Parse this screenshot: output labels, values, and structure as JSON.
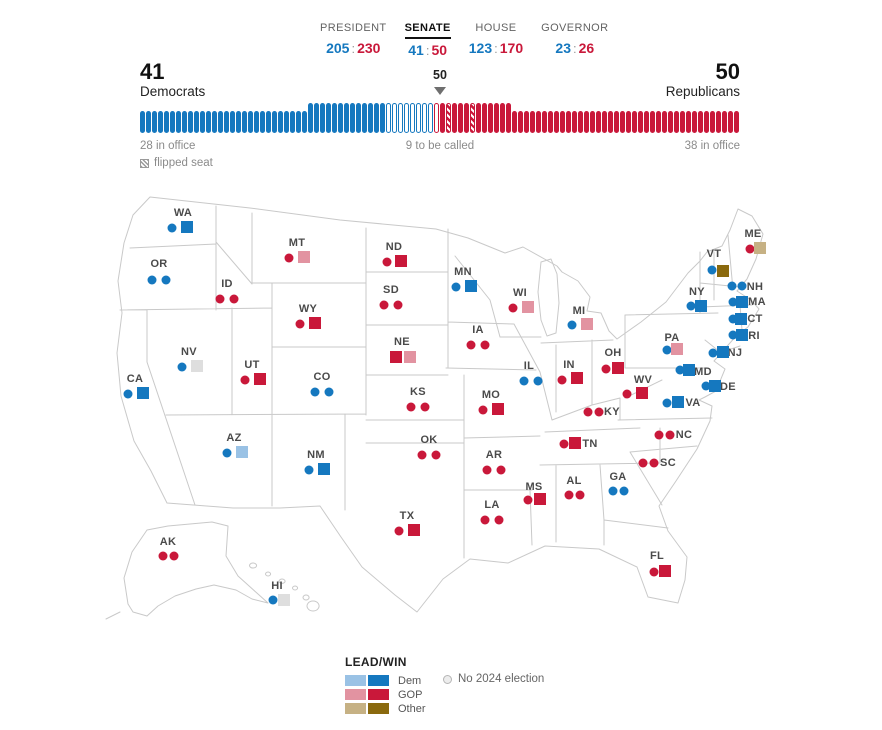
{
  "colors": {
    "dem": "#1578bf",
    "dem_light": "#9ac2e5",
    "gop": "#c9183a",
    "gop_light": "#e293a1",
    "other": "#8a690e",
    "other_light": "#c6b184",
    "none": "#dedede",
    "map_stroke": "#c9c9c9"
  },
  "tabs": [
    {
      "id": "president",
      "label": "PRESIDENT",
      "dem": "205",
      "gop": "230",
      "active": false
    },
    {
      "id": "senate",
      "label": "SENATE",
      "dem": "41",
      "gop": "50",
      "active": true
    },
    {
      "id": "house",
      "label": "HOUSE",
      "dem": "123",
      "gop": "170",
      "active": false
    },
    {
      "id": "governor",
      "label": "GOVERNOR",
      "dem": "23",
      "gop": "26",
      "active": false
    }
  ],
  "balance": {
    "dem_count": "41",
    "dem_party": "Democrats",
    "gop_count": "50",
    "gop_party": "Republicans",
    "majority_label": "50",
    "left_caption": "28 in office",
    "center_caption": "9 to be called",
    "right_caption": "38 in office",
    "flipped_caption": "flipped seat",
    "seats": {
      "dem_in_office": 28,
      "dem_won": 13,
      "dem_uncalled": 8,
      "gop_uncalled": 1,
      "gop_won": 12,
      "gop_in_office": 38,
      "gop_flipped_positions": [
        2,
        6
      ]
    }
  },
  "map": {
    "states": [
      {
        "abbr": "WA",
        "label": [
          183,
          213
        ],
        "markers": [
          [
            "circle",
            "dem",
            172,
            228
          ],
          [
            "square",
            "dem",
            187,
            227
          ]
        ]
      },
      {
        "abbr": "OR",
        "label": [
          159,
          264
        ],
        "markers": [
          [
            "circle",
            "dem",
            152,
            280
          ],
          [
            "circle",
            "dem",
            166,
            280
          ]
        ]
      },
      {
        "abbr": "CA",
        "label": [
          135,
          379
        ],
        "markers": [
          [
            "circle",
            "dem",
            128,
            394
          ],
          [
            "square",
            "dem",
            143,
            393
          ]
        ]
      },
      {
        "abbr": "NV",
        "label": [
          189,
          352
        ],
        "markers": [
          [
            "circle",
            "dem",
            182,
            367
          ],
          [
            "square",
            "none",
            197,
            366
          ]
        ]
      },
      {
        "abbr": "ID",
        "label": [
          227,
          284
        ],
        "markers": [
          [
            "circle",
            "gop",
            220,
            299
          ],
          [
            "circle",
            "gop",
            234,
            299
          ]
        ]
      },
      {
        "abbr": "MT",
        "label": [
          297,
          243
        ],
        "markers": [
          [
            "circle",
            "gop",
            289,
            258
          ],
          [
            "square",
            "gop_light",
            304,
            257
          ]
        ]
      },
      {
        "abbr": "WY",
        "label": [
          308,
          309
        ],
        "markers": [
          [
            "circle",
            "gop",
            300,
            324
          ],
          [
            "square",
            "gop",
            315,
            323
          ]
        ]
      },
      {
        "abbr": "UT",
        "label": [
          252,
          365
        ],
        "markers": [
          [
            "circle",
            "gop",
            245,
            380
          ],
          [
            "square",
            "gop",
            260,
            379
          ]
        ]
      },
      {
        "abbr": "CO",
        "label": [
          322,
          377
        ],
        "markers": [
          [
            "circle",
            "dem",
            315,
            392
          ],
          [
            "circle",
            "dem",
            329,
            392
          ]
        ]
      },
      {
        "abbr": "AZ",
        "label": [
          234,
          438
        ],
        "markers": [
          [
            "circle",
            "dem",
            227,
            453
          ],
          [
            "square",
            "dem_light",
            242,
            452
          ]
        ]
      },
      {
        "abbr": "NM",
        "label": [
          316,
          455
        ],
        "markers": [
          [
            "circle",
            "dem",
            309,
            470
          ],
          [
            "square",
            "dem",
            324,
            469
          ]
        ]
      },
      {
        "abbr": "ND",
        "label": [
          394,
          247
        ],
        "markers": [
          [
            "circle",
            "gop",
            387,
            262
          ],
          [
            "square",
            "gop",
            401,
            261
          ]
        ]
      },
      {
        "abbr": "SD",
        "label": [
          391,
          290
        ],
        "markers": [
          [
            "circle",
            "gop",
            384,
            305
          ],
          [
            "circle",
            "gop",
            398,
            305
          ]
        ]
      },
      {
        "abbr": "NE",
        "label": [
          402,
          342
        ],
        "markers": [
          [
            "square",
            "gop",
            396,
            357
          ],
          [
            "square",
            "gop_light",
            410,
            357
          ]
        ]
      },
      {
        "abbr": "KS",
        "label": [
          418,
          392
        ],
        "markers": [
          [
            "circle",
            "gop",
            411,
            407
          ],
          [
            "circle",
            "gop",
            425,
            407
          ]
        ]
      },
      {
        "abbr": "OK",
        "label": [
          429,
          440
        ],
        "markers": [
          [
            "circle",
            "gop",
            422,
            455
          ],
          [
            "circle",
            "gop",
            436,
            455
          ]
        ]
      },
      {
        "abbr": "TX",
        "label": [
          407,
          516
        ],
        "markers": [
          [
            "circle",
            "gop",
            399,
            531
          ],
          [
            "square",
            "gop",
            414,
            530
          ]
        ]
      },
      {
        "abbr": "MN",
        "label": [
          463,
          272
        ],
        "markers": [
          [
            "circle",
            "dem",
            456,
            287
          ],
          [
            "square",
            "dem",
            471,
            286
          ]
        ]
      },
      {
        "abbr": "IA",
        "label": [
          478,
          330
        ],
        "markers": [
          [
            "circle",
            "gop",
            471,
            345
          ],
          [
            "circle",
            "gop",
            485,
            345
          ]
        ]
      },
      {
        "abbr": "MO",
        "label": [
          491,
          395
        ],
        "markers": [
          [
            "circle",
            "gop",
            483,
            410
          ],
          [
            "square",
            "gop",
            498,
            409
          ]
        ]
      },
      {
        "abbr": "AR",
        "label": [
          494,
          455
        ],
        "markers": [
          [
            "circle",
            "gop",
            487,
            470
          ],
          [
            "circle",
            "gop",
            501,
            470
          ]
        ]
      },
      {
        "abbr": "LA",
        "label": [
          492,
          505
        ],
        "markers": [
          [
            "circle",
            "gop",
            485,
            520
          ],
          [
            "circle",
            "gop",
            499,
            520
          ]
        ]
      },
      {
        "abbr": "WI",
        "label": [
          520,
          293
        ],
        "markers": [
          [
            "circle",
            "gop",
            513,
            308
          ],
          [
            "square",
            "gop_light",
            528,
            307
          ]
        ]
      },
      {
        "abbr": "IL",
        "label": [
          529,
          366
        ],
        "markers": [
          [
            "circle",
            "dem",
            524,
            381
          ],
          [
            "circle",
            "dem",
            538,
            381
          ]
        ]
      },
      {
        "abbr": "MI",
        "label": [
          579,
          311
        ],
        "markers": [
          [
            "circle",
            "dem",
            572,
            325
          ],
          [
            "square",
            "gop_light",
            587,
            324
          ]
        ]
      },
      {
        "abbr": "IN",
        "label": [
          569,
          365
        ],
        "markers": [
          [
            "circle",
            "gop",
            562,
            380
          ],
          [
            "square",
            "gop",
            577,
            378
          ]
        ]
      },
      {
        "abbr": "OH",
        "label": [
          613,
          353
        ],
        "markers": [
          [
            "circle",
            "gop",
            606,
            369
          ],
          [
            "square",
            "gop",
            618,
            368
          ]
        ]
      },
      {
        "abbr": "KY",
        "label": [
          612,
          412
        ],
        "markers": [
          [
            "circle",
            "gop",
            588,
            412
          ],
          [
            "circle",
            "gop",
            599,
            412
          ]
        ]
      },
      {
        "abbr": "TN",
        "label": [
          590,
          444
        ],
        "markers": [
          [
            "circle",
            "gop",
            564,
            444
          ],
          [
            "square",
            "gop",
            575,
            443
          ]
        ]
      },
      {
        "abbr": "WV",
        "label": [
          643,
          380
        ],
        "markers": [
          [
            "circle",
            "gop",
            627,
            394
          ],
          [
            "square",
            "gop",
            642,
            393
          ]
        ]
      },
      {
        "abbr": "VA",
        "label": [
          693,
          403
        ],
        "markers": [
          [
            "circle",
            "dem",
            667,
            403
          ],
          [
            "square",
            "dem",
            678,
            402
          ]
        ]
      },
      {
        "abbr": "NC",
        "label": [
          684,
          435
        ],
        "markers": [
          [
            "circle",
            "gop",
            659,
            435
          ],
          [
            "circle",
            "gop",
            670,
            435
          ]
        ]
      },
      {
        "abbr": "SC",
        "label": [
          668,
          463
        ],
        "markers": [
          [
            "circle",
            "gop",
            643,
            463
          ],
          [
            "circle",
            "gop",
            654,
            463
          ]
        ]
      },
      {
        "abbr": "GA",
        "label": [
          618,
          477
        ],
        "markers": [
          [
            "circle",
            "dem",
            613,
            491
          ],
          [
            "circle",
            "dem",
            624,
            491
          ]
        ]
      },
      {
        "abbr": "AL",
        "label": [
          574,
          481
        ],
        "markers": [
          [
            "circle",
            "gop",
            569,
            495
          ],
          [
            "circle",
            "gop",
            580,
            495
          ]
        ]
      },
      {
        "abbr": "MS",
        "label": [
          534,
          487
        ],
        "markers": [
          [
            "circle",
            "gop",
            528,
            500
          ],
          [
            "square",
            "gop",
            540,
            499
          ]
        ]
      },
      {
        "abbr": "FL",
        "label": [
          657,
          556
        ],
        "markers": [
          [
            "circle",
            "gop",
            654,
            572
          ],
          [
            "square",
            "gop",
            665,
            571
          ]
        ]
      },
      {
        "abbr": "AK",
        "label": [
          168,
          542
        ],
        "markers": [
          [
            "circle",
            "gop",
            163,
            556
          ],
          [
            "circle",
            "gop",
            174,
            556
          ]
        ]
      },
      {
        "abbr": "HI",
        "label": [
          277,
          586
        ],
        "markers": [
          [
            "circle",
            "dem",
            273,
            600
          ],
          [
            "square",
            "none",
            284,
            600
          ]
        ]
      },
      {
        "abbr": "VT",
        "label": [
          714,
          254
        ],
        "markers": [
          [
            "circle",
            "dem",
            712,
            270
          ],
          [
            "square",
            "other",
            723,
            271
          ]
        ]
      },
      {
        "abbr": "ME",
        "label": [
          753,
          234
        ],
        "markers": [
          [
            "circle",
            "gop",
            750,
            249
          ],
          [
            "square",
            "other_light",
            760,
            248
          ]
        ]
      },
      {
        "abbr": "NH",
        "label": [
          755,
          287
        ],
        "markers": [
          [
            "circle",
            "dem",
            732,
            286
          ],
          [
            "circle",
            "dem",
            742,
            286
          ]
        ]
      },
      {
        "abbr": "NY",
        "label": [
          697,
          292
        ],
        "markers": [
          [
            "circle",
            "dem",
            691,
            306
          ],
          [
            "square",
            "dem",
            701,
            306
          ]
        ]
      },
      {
        "abbr": "MA",
        "label": [
          757,
          302
        ],
        "markers": [
          [
            "circle",
            "dem",
            733,
            302
          ],
          [
            "square",
            "dem",
            742,
            302
          ]
        ]
      },
      {
        "abbr": "CT",
        "label": [
          755,
          319
        ],
        "markers": [
          [
            "circle",
            "dem",
            733,
            319
          ],
          [
            "square",
            "dem",
            741,
            319
          ]
        ]
      },
      {
        "abbr": "RI",
        "label": [
          754,
          336
        ],
        "markers": [
          [
            "circle",
            "dem",
            733,
            335
          ],
          [
            "square",
            "dem",
            742,
            335
          ]
        ]
      },
      {
        "abbr": "NJ",
        "label": [
          735,
          353
        ],
        "markers": [
          [
            "circle",
            "dem",
            713,
            353
          ],
          [
            "square",
            "dem",
            723,
            352
          ]
        ]
      },
      {
        "abbr": "PA",
        "label": [
          672,
          338
        ],
        "markers": [
          [
            "circle",
            "dem",
            667,
            350
          ],
          [
            "square",
            "gop_light",
            677,
            349
          ]
        ]
      },
      {
        "abbr": "MD",
        "label": [
          703,
          372
        ],
        "markers": [
          [
            "circle",
            "dem",
            680,
            370
          ],
          [
            "square",
            "dem",
            689,
            370
          ]
        ]
      },
      {
        "abbr": "DE",
        "label": [
          728,
          387
        ],
        "markers": [
          [
            "circle",
            "dem",
            706,
            386
          ],
          [
            "square",
            "dem",
            715,
            386
          ]
        ]
      }
    ]
  },
  "legend": {
    "title": "LEAD/WIN",
    "rows": [
      {
        "label": "Dem",
        "lead": "dem_light",
        "win": "dem"
      },
      {
        "label": "GOP",
        "lead": "gop_light",
        "win": "gop"
      },
      {
        "label": "Other",
        "lead": "other_light",
        "win": "other"
      }
    ],
    "no_election": "No 2024 election"
  }
}
